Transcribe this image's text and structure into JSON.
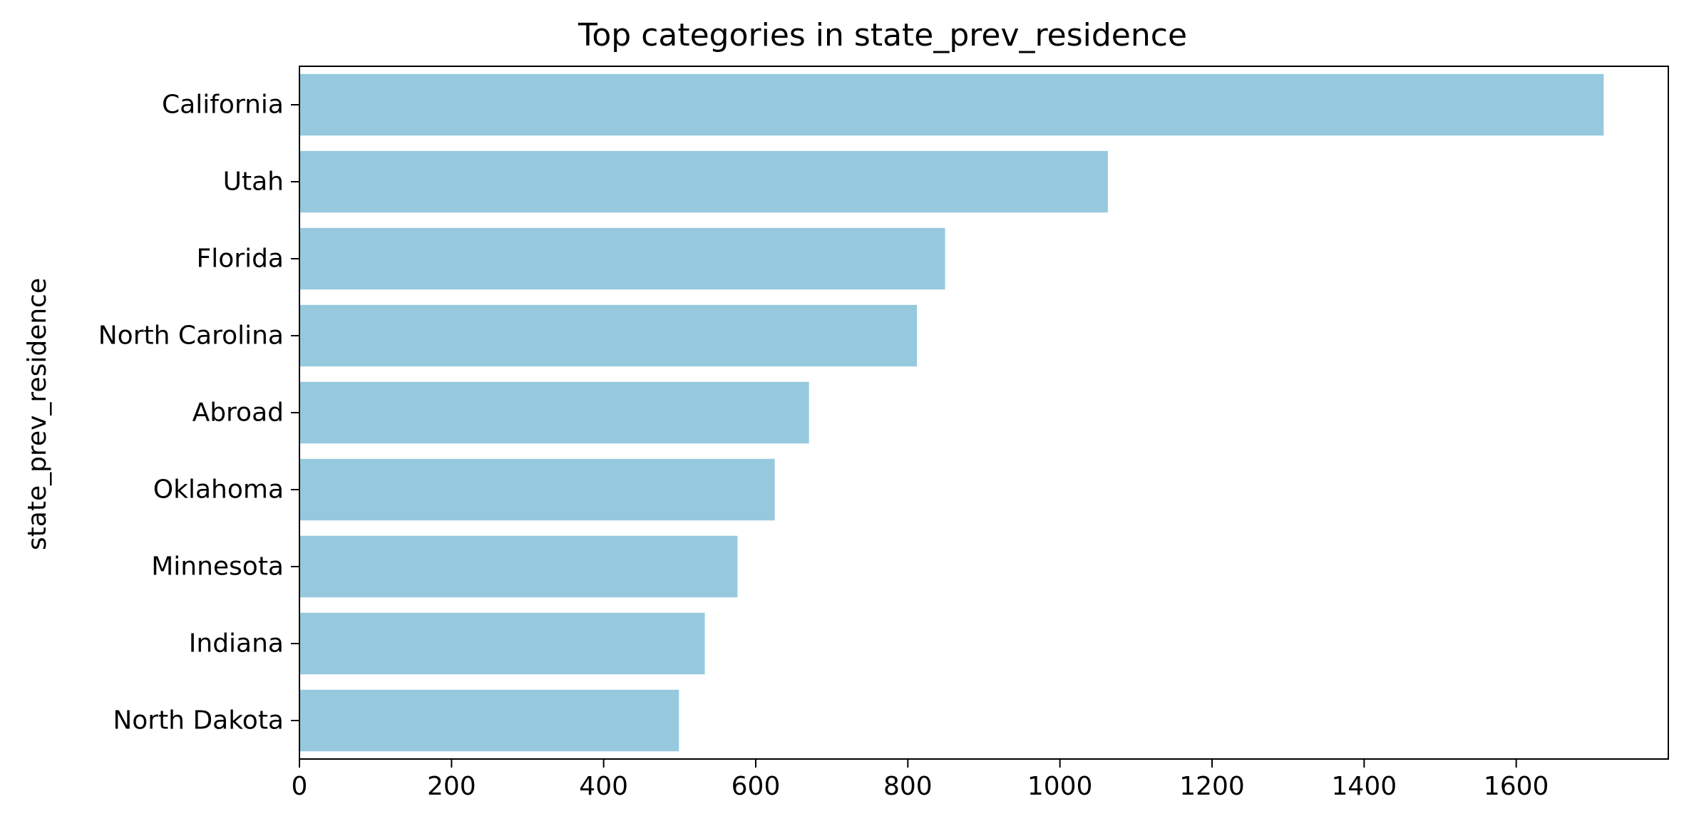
{
  "chart_data": {
    "type": "bar",
    "orientation": "horizontal",
    "title": "Top categories in state_prev_residence",
    "xlabel": "",
    "ylabel": "state_prev_residence",
    "categories": [
      "California",
      "Utah",
      "Florida",
      "North Carolina",
      "Abroad",
      "Oklahoma",
      "Minnesota",
      "Indiana",
      "North Dakota"
    ],
    "values": [
      1715,
      1063,
      849,
      812,
      670,
      625,
      576,
      533,
      499
    ],
    "xlim": [
      0,
      1800
    ],
    "xticks": [
      0,
      200,
      400,
      600,
      800,
      1000,
      1200,
      1400,
      1600
    ],
    "grid": false,
    "bar_color": "#96c9de"
  }
}
